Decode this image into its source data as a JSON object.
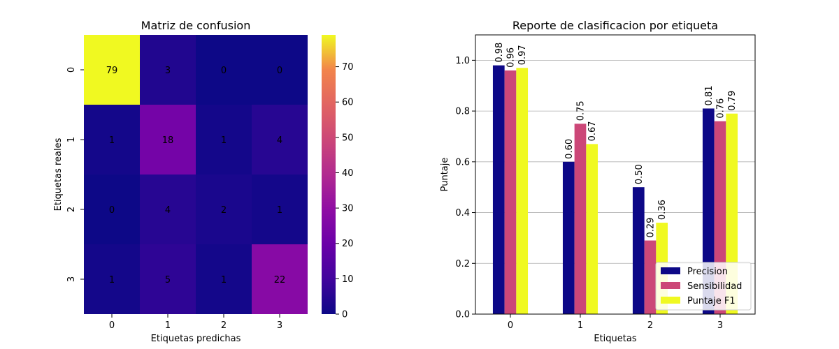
{
  "chart_data": [
    {
      "type": "heatmap",
      "title": "Matriz de confusion",
      "xlabel": "Etiquetas predichas",
      "ylabel": "Etiquetas reales",
      "x_categories": [
        "0",
        "1",
        "2",
        "3"
      ],
      "y_categories": [
        "0",
        "1",
        "2",
        "3"
      ],
      "values": [
        [
          79,
          3,
          0,
          0
        ],
        [
          1,
          18,
          1,
          4
        ],
        [
          0,
          4,
          2,
          1
        ],
        [
          1,
          5,
          1,
          22
        ]
      ],
      "colormap": "plasma",
      "colorbar": {
        "range": [
          0,
          79
        ],
        "ticks": [
          0,
          10,
          20,
          30,
          40,
          50,
          60,
          70
        ]
      }
    },
    {
      "type": "bar",
      "title": "Reporte de clasificacion por etiqueta",
      "xlabel": "Etiquetas",
      "ylabel": "Puntaje",
      "categories": [
        "0",
        "1",
        "2",
        "3"
      ],
      "ylim": [
        0,
        1.1
      ],
      "yticks": [
        0.0,
        0.2,
        0.4,
        0.6,
        0.8,
        1.0
      ],
      "ytick_labels": [
        "0.0",
        "0.2",
        "0.4",
        "0.6",
        "0.8",
        "1.0"
      ],
      "grid": "y",
      "legend_position": "bottom-right",
      "series": [
        {
          "name": "Precision",
          "color": "#0d0887",
          "values": [
            0.98,
            0.6,
            0.5,
            0.81
          ],
          "labels": [
            "0.98",
            "0.60",
            "0.50",
            "0.81"
          ]
        },
        {
          "name": "Sensibilidad",
          "color": "#cc4778",
          "values": [
            0.96,
            0.75,
            0.29,
            0.76
          ],
          "labels": [
            "0.96",
            "0.75",
            "0.29",
            "0.76"
          ]
        },
        {
          "name": "Puntaje F1",
          "color": "#f0f921",
          "values": [
            0.97,
            0.67,
            0.36,
            0.79
          ],
          "labels": [
            "0.97",
            "0.67",
            "0.36",
            "0.79"
          ]
        }
      ]
    }
  ]
}
